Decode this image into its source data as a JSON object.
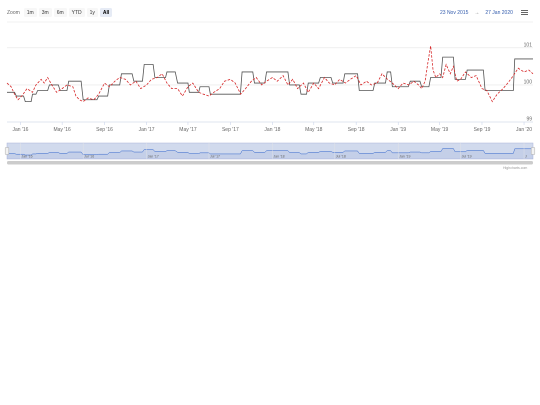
{
  "rangeSelector": {
    "zoom_label": "Zoom",
    "buttons": [
      "1m",
      "3m",
      "6m",
      "YTD",
      "1y",
      "All"
    ],
    "selected": "All",
    "from_date": "23 Nov 2015",
    "to_label": "→",
    "to_date": "27 Jan 2020"
  },
  "menu_icon": "hamburger-menu-icon",
  "credits": "Highcharts.com",
  "chart_data": {
    "type": "line",
    "x_axis": {
      "type": "datetime",
      "ticks": [
        "Jan '16",
        "May '16",
        "Sep '16",
        "Jan '17",
        "May '17",
        "Sep '17",
        "Jan '18",
        "May '18",
        "Sep '18",
        "Jan '19",
        "May '19",
        "Sep '19",
        "Jan '20"
      ],
      "min": "2015-11-23",
      "max": "2020-01-27"
    },
    "y_axis": {
      "ticks": [
        99,
        100,
        101
      ],
      "min": 99,
      "max": 101.4,
      "grid": true
    },
    "navigator": {
      "ticks": [
        "Jan '16",
        "Jul '16",
        "Jan '17",
        "Jul '17",
        "Jan '18",
        "Jul '18",
        "Jan '19",
        "Jul '19",
        "J"
      ]
    },
    "series": [
      {
        "style": "solid",
        "color": "#555555",
        "data": [
          [
            "2015-11-23",
            99.8
          ],
          [
            "2015-12-15",
            99.8
          ],
          [
            "2015-12-20",
            99.7
          ],
          [
            "2016-01-10",
            99.7
          ],
          [
            "2016-01-15",
            99.55
          ],
          [
            "2016-02-01",
            99.55
          ],
          [
            "2016-02-05",
            99.75
          ],
          [
            "2016-02-15",
            99.75
          ],
          [
            "2016-02-20",
            99.85
          ],
          [
            "2016-03-20",
            99.85
          ],
          [
            "2016-03-25",
            100.0
          ],
          [
            "2016-04-20",
            100.0
          ],
          [
            "2016-04-25",
            99.85
          ],
          [
            "2016-05-15",
            99.85
          ],
          [
            "2016-05-20",
            100.1
          ],
          [
            "2016-06-25",
            100.1
          ],
          [
            "2016-07-01",
            99.6
          ],
          [
            "2016-08-10",
            99.6
          ],
          [
            "2016-08-15",
            99.7
          ],
          [
            "2016-09-10",
            99.7
          ],
          [
            "2016-09-15",
            100.0
          ],
          [
            "2016-10-15",
            100.0
          ],
          [
            "2016-10-20",
            100.3
          ],
          [
            "2016-11-20",
            100.3
          ],
          [
            "2016-11-25",
            100.1
          ],
          [
            "2016-12-20",
            100.1
          ],
          [
            "2016-12-25",
            100.55
          ],
          [
            "2017-01-20",
            100.55
          ],
          [
            "2017-01-25",
            100.2
          ],
          [
            "2017-02-25",
            100.2
          ],
          [
            "2017-03-01",
            100.35
          ],
          [
            "2017-03-25",
            100.35
          ],
          [
            "2017-04-01",
            100.05
          ],
          [
            "2017-05-01",
            100.05
          ],
          [
            "2017-05-05",
            99.8
          ],
          [
            "2017-06-01",
            99.8
          ],
          [
            "2017-06-05",
            99.95
          ],
          [
            "2017-07-01",
            99.95
          ],
          [
            "2017-07-05",
            99.75
          ],
          [
            "2017-09-30",
            99.75
          ],
          [
            "2017-10-05",
            100.35
          ],
          [
            "2017-11-05",
            100.35
          ],
          [
            "2017-11-10",
            100.05
          ],
          [
            "2017-12-10",
            100.05
          ],
          [
            "2017-12-15",
            100.35
          ],
          [
            "2018-02-15",
            100.35
          ],
          [
            "2018-02-20",
            100.0
          ],
          [
            "2018-03-20",
            100.0
          ],
          [
            "2018-03-25",
            99.75
          ],
          [
            "2018-04-10",
            99.75
          ],
          [
            "2018-04-15",
            100.05
          ],
          [
            "2018-05-15",
            100.05
          ],
          [
            "2018-05-20",
            100.2
          ],
          [
            "2018-06-20",
            100.2
          ],
          [
            "2018-06-25",
            100.05
          ],
          [
            "2018-07-25",
            100.05
          ],
          [
            "2018-07-30",
            100.3
          ],
          [
            "2018-09-05",
            100.3
          ],
          [
            "2018-09-10",
            99.85
          ],
          [
            "2018-10-20",
            99.85
          ],
          [
            "2018-10-25",
            100.05
          ],
          [
            "2018-11-25",
            100.05
          ],
          [
            "2018-11-30",
            100.35
          ],
          [
            "2018-12-10",
            100.35
          ],
          [
            "2018-12-15",
            99.95
          ],
          [
            "2019-01-30",
            99.95
          ],
          [
            "2019-02-05",
            100.1
          ],
          [
            "2019-03-05",
            100.1
          ],
          [
            "2019-03-10",
            99.95
          ],
          [
            "2019-03-31",
            99.95
          ],
          [
            "2019-04-05",
            100.2
          ],
          [
            "2019-05-05",
            100.2
          ],
          [
            "2019-05-10",
            100.75
          ],
          [
            "2019-06-10",
            100.75
          ],
          [
            "2019-06-15",
            100.15
          ],
          [
            "2019-07-15",
            100.15
          ],
          [
            "2019-07-20",
            100.4
          ],
          [
            "2019-09-05",
            100.4
          ],
          [
            "2019-09-10",
            99.85
          ],
          [
            "2019-12-01",
            99.85
          ],
          [
            "2019-12-05",
            100.7
          ],
          [
            "2020-01-27",
            100.7
          ]
        ]
      },
      {
        "style": "dashed",
        "color": "#d62728",
        "data": [
          [
            "2015-11-23",
            100.05
          ],
          [
            "2015-12-05",
            99.95
          ],
          [
            "2015-12-15",
            99.75
          ],
          [
            "2015-12-25",
            99.6
          ],
          [
            "2016-01-05",
            99.7
          ],
          [
            "2016-01-20",
            99.9
          ],
          [
            "2016-02-05",
            99.8
          ],
          [
            "2016-02-15",
            100.0
          ],
          [
            "2016-03-01",
            100.15
          ],
          [
            "2016-03-10",
            100.05
          ],
          [
            "2016-03-20",
            100.2
          ],
          [
            "2016-04-01",
            100.0
          ],
          [
            "2016-04-15",
            99.8
          ],
          [
            "2016-05-01",
            99.9
          ],
          [
            "2016-05-15",
            100.0
          ],
          [
            "2016-06-01",
            99.95
          ],
          [
            "2016-06-10",
            99.7
          ],
          [
            "2016-06-20",
            99.6
          ],
          [
            "2016-07-01",
            99.55
          ],
          [
            "2016-07-15",
            99.65
          ],
          [
            "2016-08-01",
            99.6
          ],
          [
            "2016-08-15",
            99.75
          ],
          [
            "2016-09-01",
            100.05
          ],
          [
            "2016-09-15",
            99.95
          ],
          [
            "2016-10-01",
            100.1
          ],
          [
            "2016-10-15",
            100.2
          ],
          [
            "2016-11-01",
            100.15
          ],
          [
            "2016-11-15",
            100.0
          ],
          [
            "2016-12-01",
            100.1
          ],
          [
            "2016-12-15",
            99.9
          ],
          [
            "2017-01-01",
            100.0
          ],
          [
            "2017-01-15",
            100.15
          ],
          [
            "2017-02-01",
            100.2
          ],
          [
            "2017-02-15",
            100.3
          ],
          [
            "2017-03-01",
            100.05
          ],
          [
            "2017-03-15",
            99.9
          ],
          [
            "2017-04-01",
            99.9
          ],
          [
            "2017-04-15",
            99.7
          ],
          [
            "2017-05-01",
            99.95
          ],
          [
            "2017-05-15",
            100.05
          ],
          [
            "2017-06-01",
            99.8
          ],
          [
            "2017-06-15",
            99.75
          ],
          [
            "2017-07-01",
            99.7
          ],
          [
            "2017-07-15",
            99.8
          ],
          [
            "2017-08-01",
            99.9
          ],
          [
            "2017-08-15",
            100.1
          ],
          [
            "2017-09-01",
            100.15
          ],
          [
            "2017-09-15",
            100.05
          ],
          [
            "2017-10-01",
            99.75
          ],
          [
            "2017-10-15",
            99.9
          ],
          [
            "2017-11-01",
            100.1
          ],
          [
            "2017-11-15",
            100.2
          ],
          [
            "2017-12-01",
            100.0
          ],
          [
            "2017-12-15",
            100.1
          ],
          [
            "2018-01-01",
            100.2
          ],
          [
            "2018-01-15",
            100.1
          ],
          [
            "2018-02-01",
            100.25
          ],
          [
            "2018-02-15",
            100.0
          ],
          [
            "2018-03-01",
            100.15
          ],
          [
            "2018-03-15",
            99.9
          ],
          [
            "2018-04-01",
            100.05
          ],
          [
            "2018-04-15",
            99.8
          ],
          [
            "2018-05-01",
            100.05
          ],
          [
            "2018-05-15",
            99.9
          ],
          [
            "2018-06-01",
            100.2
          ],
          [
            "2018-06-15",
            100.05
          ],
          [
            "2018-07-01",
            100.0
          ],
          [
            "2018-07-15",
            100.15
          ],
          [
            "2018-08-01",
            100.05
          ],
          [
            "2018-08-15",
            100.15
          ],
          [
            "2018-09-01",
            100.25
          ],
          [
            "2018-09-15",
            100.0
          ],
          [
            "2018-10-01",
            100.1
          ],
          [
            "2018-10-15",
            100.0
          ],
          [
            "2018-11-01",
            100.05
          ],
          [
            "2018-11-15",
            100.3
          ],
          [
            "2018-12-01",
            100.15
          ],
          [
            "2018-12-15",
            100.05
          ],
          [
            "2019-01-01",
            99.9
          ],
          [
            "2019-01-15",
            100.05
          ],
          [
            "2019-02-01",
            100.0
          ],
          [
            "2019-02-15",
            100.1
          ],
          [
            "2019-03-01",
            100.0
          ],
          [
            "2019-03-10",
            99.9
          ],
          [
            "2019-03-20",
            100.1
          ],
          [
            "2019-03-28",
            100.6
          ],
          [
            "2019-04-05",
            101.05
          ],
          [
            "2019-04-12",
            100.4
          ],
          [
            "2019-04-20",
            100.2
          ],
          [
            "2019-05-01",
            100.3
          ],
          [
            "2019-05-10",
            100.2
          ],
          [
            "2019-05-20",
            100.55
          ],
          [
            "2019-06-01",
            100.3
          ],
          [
            "2019-06-10",
            100.5
          ],
          [
            "2019-06-20",
            100.1
          ],
          [
            "2019-07-01",
            100.15
          ],
          [
            "2019-07-15",
            100.35
          ],
          [
            "2019-08-01",
            100.2
          ],
          [
            "2019-08-15",
            100.25
          ],
          [
            "2019-09-01",
            99.9
          ],
          [
            "2019-09-15",
            99.85
          ],
          [
            "2019-10-01",
            99.55
          ],
          [
            "2019-10-15",
            99.75
          ],
          [
            "2019-11-01",
            99.9
          ],
          [
            "2019-11-15",
            100.05
          ],
          [
            "2019-12-01",
            100.25
          ],
          [
            "2019-12-15",
            100.45
          ],
          [
            "2020-01-01",
            100.35
          ],
          [
            "2020-01-15",
            100.4
          ],
          [
            "2020-01-27",
            100.3
          ]
        ]
      }
    ]
  }
}
